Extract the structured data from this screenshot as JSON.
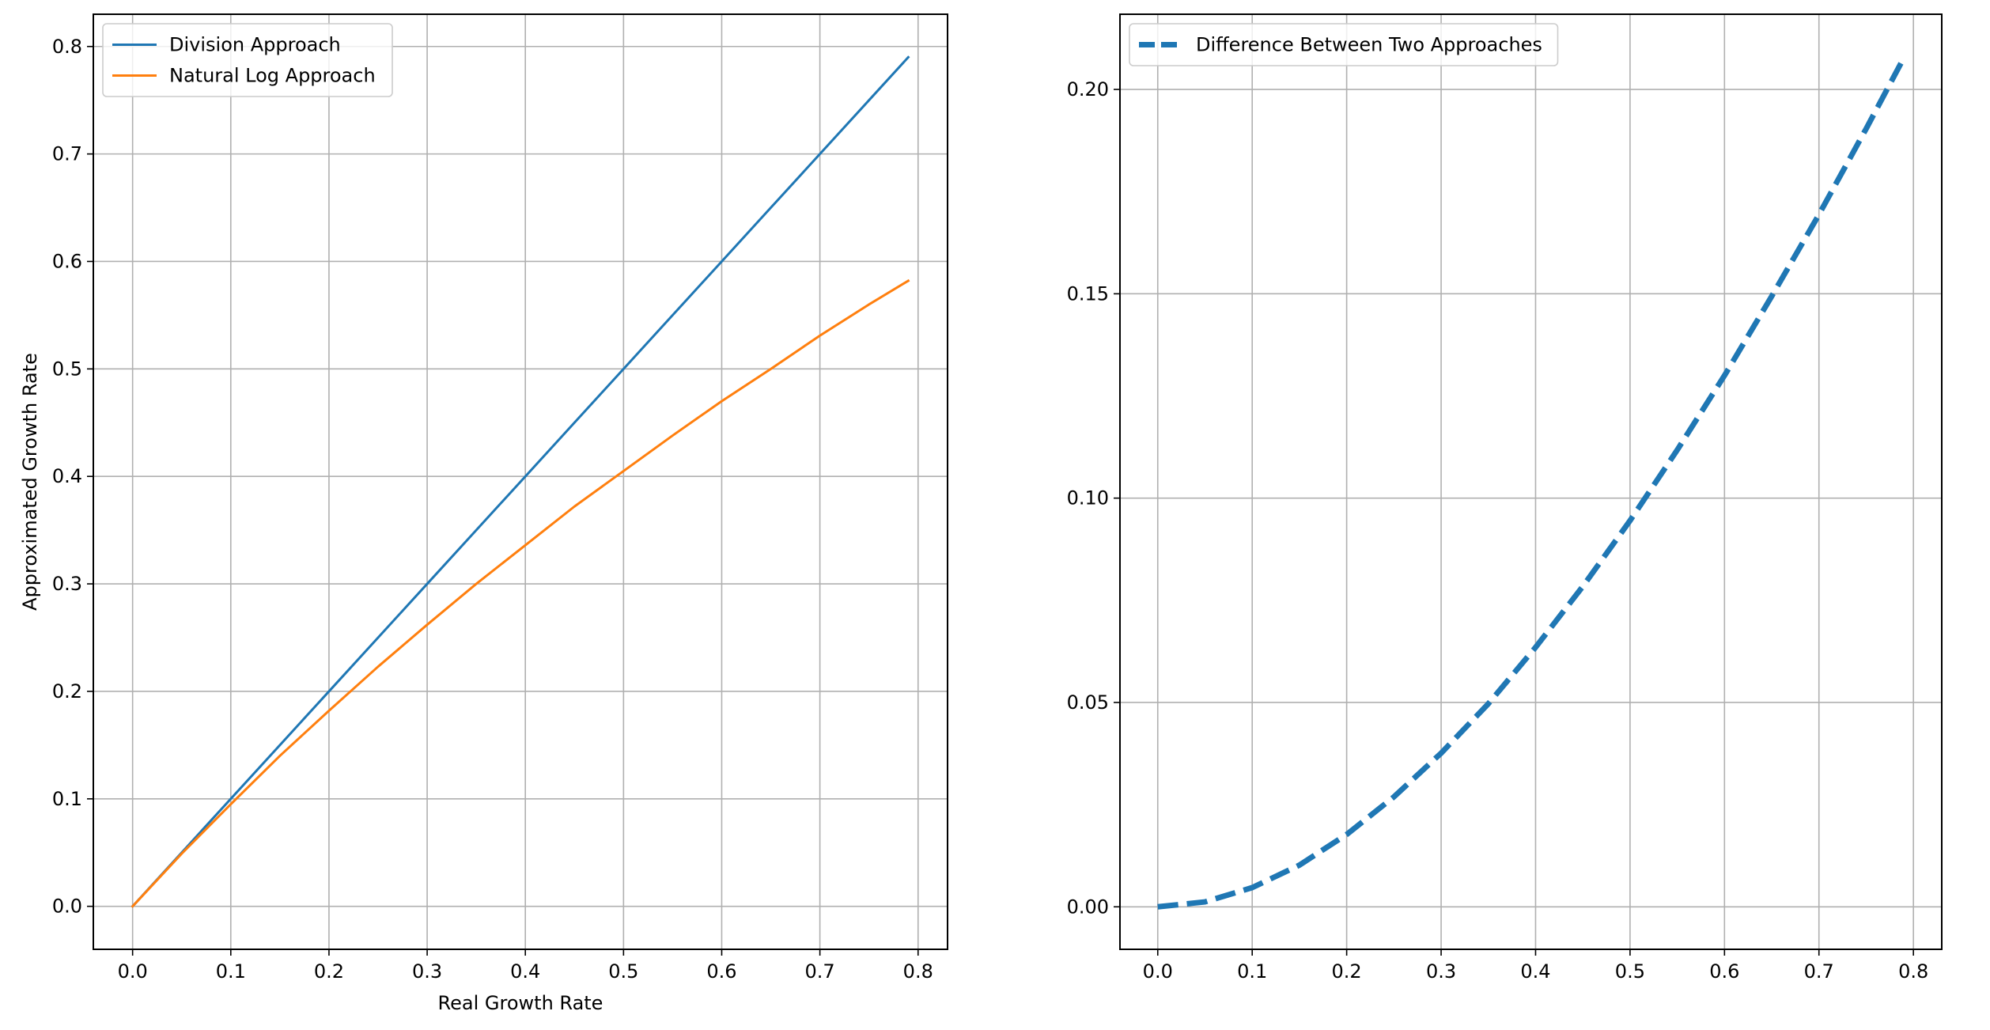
{
  "chart_data": [
    {
      "type": "line",
      "title": "",
      "xlabel": "Real Growth Rate",
      "ylabel": "Approximated Growth Rate",
      "xlim": [
        -0.04,
        0.83
      ],
      "ylim": [
        -0.04,
        0.83
      ],
      "xticks": [
        0.0,
        0.1,
        0.2,
        0.3,
        0.4,
        0.5,
        0.6,
        0.7,
        0.8
      ],
      "xtick_labels": [
        "0.0",
        "0.1",
        "0.2",
        "0.3",
        "0.4",
        "0.5",
        "0.6",
        "0.7",
        "0.8"
      ],
      "yticks": [
        0.0,
        0.1,
        0.2,
        0.3,
        0.4,
        0.5,
        0.6,
        0.7,
        0.8
      ],
      "ytick_labels": [
        "0.0",
        "0.1",
        "0.2",
        "0.3",
        "0.4",
        "0.5",
        "0.6",
        "0.7",
        "0.8"
      ],
      "grid": true,
      "legend_position": "top-left",
      "x": [
        0.0,
        0.05,
        0.1,
        0.15,
        0.2,
        0.25,
        0.3,
        0.35,
        0.4,
        0.45,
        0.5,
        0.55,
        0.6,
        0.65,
        0.7,
        0.75,
        0.79
      ],
      "series": [
        {
          "name": "Division Approach",
          "color": "#1f77b4",
          "style": "solid",
          "values": [
            0.0,
            0.05,
            0.1,
            0.15,
            0.2,
            0.25,
            0.3,
            0.35,
            0.4,
            0.45,
            0.5,
            0.55,
            0.6,
            0.65,
            0.7,
            0.75,
            0.79
          ]
        },
        {
          "name": "Natural Log Approach",
          "color": "#ff7f0e",
          "style": "solid",
          "values": [
            0.0,
            0.049,
            0.095,
            0.14,
            0.182,
            0.223,
            0.262,
            0.3,
            0.336,
            0.372,
            0.405,
            0.438,
            0.47,
            0.5,
            0.531,
            0.56,
            0.582
          ]
        }
      ]
    },
    {
      "type": "line",
      "title": "",
      "xlabel": "",
      "ylabel": "",
      "xlim": [
        -0.04,
        0.83
      ],
      "ylim": [
        -0.0104,
        0.2184
      ],
      "xticks": [
        0.0,
        0.1,
        0.2,
        0.3,
        0.4,
        0.5,
        0.6,
        0.7,
        0.8
      ],
      "xtick_labels": [
        "0.0",
        "0.1",
        "0.2",
        "0.3",
        "0.4",
        "0.5",
        "0.6",
        "0.7",
        "0.8"
      ],
      "yticks": [
        0.0,
        0.05,
        0.1,
        0.15,
        0.2
      ],
      "ytick_labels": [
        "0.00",
        "0.05",
        "0.10",
        "0.15",
        "0.20"
      ],
      "grid": true,
      "legend_position": "top-left",
      "x": [
        0.0,
        0.05,
        0.1,
        0.15,
        0.2,
        0.25,
        0.3,
        0.35,
        0.4,
        0.45,
        0.5,
        0.55,
        0.6,
        0.65,
        0.7,
        0.75,
        0.79
      ],
      "series": [
        {
          "name": "Difference Between Two Approaches",
          "color": "#1f77b4",
          "style": "dashed",
          "values": [
            0.0,
            0.0012,
            0.0047,
            0.0102,
            0.0177,
            0.0269,
            0.0376,
            0.0497,
            0.0635,
            0.0784,
            0.0945,
            0.1118,
            0.13,
            0.1494,
            0.1694,
            0.1904,
            0.2078
          ]
        }
      ]
    }
  ]
}
